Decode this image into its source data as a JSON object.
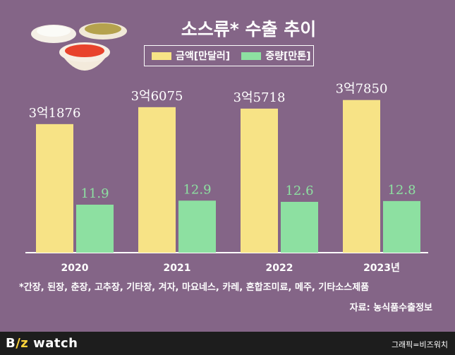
{
  "title": "소스류* 수출 추이",
  "legend": [
    {
      "label": "금액[만달러]",
      "color": "#f7e386"
    },
    {
      "label": "중량[만톤]",
      "color": "#8de0a1"
    }
  ],
  "footnote": "*간장, 된장, 춘장, 고추장, 기타장, 겨자, 마요네스, 카레, 혼합조미료, 메주, 기타소스제품",
  "source": "자료: 농식품수출정보",
  "credit": "그래픽=비즈워치",
  "logo": {
    "b": "B",
    "z": "/z",
    "rest": " watch"
  },
  "chart_data": {
    "type": "bar",
    "title": "소스류* 수출 추이",
    "categories": [
      "2020",
      "2021",
      "2022",
      "2023년"
    ],
    "series": [
      {
        "name": "금액[만달러]",
        "values": [
          31876,
          36075,
          35718,
          37850
        ],
        "labels": [
          "3억1876",
          "3억6075",
          "3억5718",
          "3억7850"
        ],
        "color": "#f7e386"
      },
      {
        "name": "중량[만톤]",
        "values": [
          11.9,
          12.9,
          12.6,
          12.8
        ],
        "labels": [
          "11.9",
          "12.9",
          "12.6",
          "12.8"
        ],
        "color": "#8de0a1"
      }
    ],
    "legend_position": "top-center",
    "grid": false
  }
}
